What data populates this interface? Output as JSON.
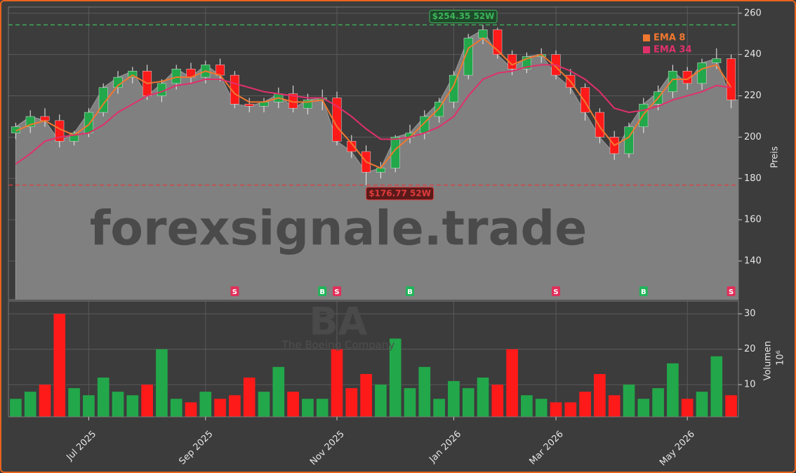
{
  "chart_data": {
    "type": "candlestick",
    "categories": [
      null,
      null,
      null,
      null,
      null,
      "Jul 2025",
      null,
      null,
      null,
      null,
      null,
      null,
      null,
      "Sep 2025",
      null,
      null,
      null,
      null,
      null,
      null,
      null,
      null,
      "Nov 2025",
      null,
      null,
      null,
      null,
      null,
      null,
      null,
      "Jan 2026",
      null,
      null,
      null,
      null,
      null,
      null,
      "Mar 2026",
      null,
      null,
      null,
      null,
      null,
      null,
      null,
      null,
      "May 2026",
      null,
      null,
      null
    ],
    "open": [
      202,
      205,
      210,
      208,
      198,
      202,
      212,
      224,
      229,
      232,
      220,
      226,
      233,
      229,
      235,
      230,
      216,
      215,
      217,
      221,
      214,
      218,
      219,
      198,
      193,
      183,
      185,
      200,
      202,
      210,
      217,
      230,
      248,
      252,
      240,
      233,
      239,
      240,
      230,
      224,
      212,
      200,
      192,
      205,
      216,
      222,
      232,
      226,
      236,
      238
    ],
    "high": [
      207,
      213,
      214,
      211,
      203,
      214,
      226,
      232,
      234,
      235,
      228,
      235,
      236,
      237,
      238,
      232,
      219,
      219,
      224,
      225,
      221,
      223,
      222,
      201,
      196,
      188,
      201,
      206,
      213,
      219,
      232,
      250,
      254.35,
      253,
      242,
      241,
      243,
      242,
      233,
      226,
      214,
      203,
      207,
      219,
      225,
      235,
      234,
      238,
      243,
      240
    ],
    "low": [
      199,
      202,
      205,
      195,
      196,
      200,
      210,
      221,
      226,
      218,
      217,
      223,
      226,
      226,
      227,
      214,
      212,
      212,
      214,
      212,
      211,
      213,
      196,
      190,
      176.77,
      180,
      183,
      197,
      199,
      207,
      214,
      228,
      245,
      238,
      230,
      231,
      236,
      228,
      221,
      208,
      197,
      189,
      190,
      202,
      213,
      219,
      223,
      223,
      233,
      214
    ],
    "close": [
      205,
      210,
      208,
      198,
      202,
      212,
      224,
      229,
      232,
      220,
      226,
      233,
      229,
      235,
      230,
      216,
      215,
      217,
      221,
      214,
      218,
      219,
      198,
      193,
      183,
      185,
      200,
      202,
      210,
      217,
      230,
      248,
      252,
      240,
      233,
      239,
      240,
      230,
      224,
      212,
      200,
      192,
      205,
      216,
      222,
      232,
      226,
      236,
      238,
      218
    ],
    "up_color": "#22a84a",
    "down_color": "#ff1a1a",
    "series": [
      {
        "name": "EMA 8",
        "color": "#f07830",
        "values": [
          203,
          206,
          208,
          204,
          201,
          206,
          216,
          225,
          230,
          226,
          227,
          229,
          229,
          232,
          230,
          221,
          217,
          217,
          219,
          217,
          217,
          218,
          205,
          197,
          188,
          185,
          194,
          200,
          207,
          214,
          225,
          243,
          248,
          242,
          235,
          238,
          240,
          234,
          227,
          217,
          205,
          196,
          200,
          211,
          219,
          228,
          228,
          233,
          235,
          224
        ]
      },
      {
        "name": "EMA 34",
        "color": "#e0306a",
        "values": [
          187,
          192,
          198,
          200,
          201,
          202,
          206,
          212,
          216,
          220,
          222,
          225,
          226,
          228,
          228,
          226,
          224,
          222,
          221,
          220,
          219,
          219,
          215,
          210,
          204,
          199,
          199,
          200,
          202,
          205,
          210,
          220,
          228,
          231,
          232,
          234,
          235,
          235,
          232,
          228,
          222,
          214,
          212,
          213,
          215,
          218,
          220,
          222,
          225,
          224
        ]
      }
    ],
    "ylim": [
      121.3,
      263
    ],
    "yticks": [
      140,
      160,
      180,
      200,
      220,
      240,
      260
    ],
    "ylabel": "Preis",
    "reference_lines": [
      {
        "value": 254.35,
        "label": "$254.35 52W",
        "color": "#3cb45a",
        "at": 32
      },
      {
        "value": 176.77,
        "label": "$176.77 52W",
        "color": "#e03c3c",
        "at": 24
      }
    ],
    "signals": [
      {
        "index": 15,
        "label": "S",
        "color": "#e0305a"
      },
      {
        "index": 21,
        "label": "B",
        "color": "#22b45a"
      },
      {
        "index": 22,
        "label": "S",
        "color": "#e0305a"
      },
      {
        "index": 27,
        "label": "B",
        "color": "#22b45a"
      },
      {
        "index": 37,
        "label": "S",
        "color": "#e0305a"
      },
      {
        "index": 43,
        "label": "B",
        "color": "#22b45a"
      },
      {
        "index": 49,
        "label": "S",
        "color": "#e0305a"
      }
    ],
    "volume": {
      "values": [
        6,
        8,
        10,
        30,
        9,
        7,
        12,
        8,
        7,
        10,
        20,
        6,
        5,
        8,
        6,
        7,
        12,
        8,
        15,
        8,
        6,
        6,
        20,
        9,
        13,
        10,
        23,
        9,
        15,
        6,
        11,
        9,
        12,
        10,
        20,
        7,
        6,
        5,
        5,
        8,
        13,
        7,
        10,
        6,
        9,
        16,
        6,
        8,
        18,
        7
      ],
      "ylim": [
        0.9,
        33.6
      ],
      "yticks": [
        10,
        20,
        30
      ],
      "ylabel": "Volumen",
      "unit": "10⁶"
    },
    "watermark": "forexsignale.trade",
    "symbol": "BA",
    "company": "The Boeing Company",
    "grid": true
  }
}
